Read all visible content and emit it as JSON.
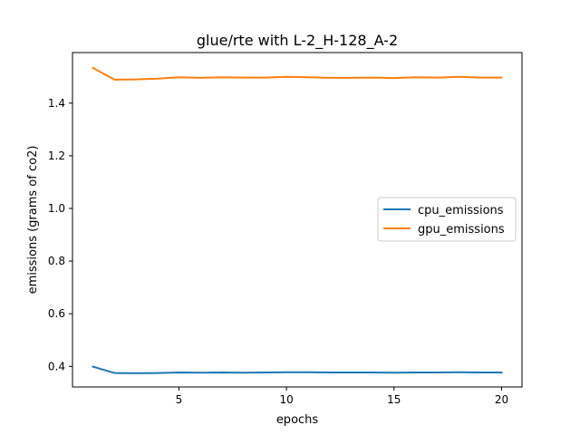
{
  "chart_data": {
    "type": "line",
    "title": "glue/rte with L-2_H-128_A-2",
    "xlabel": "epochs",
    "ylabel": "emissions (grams of co2)",
    "xlim": [
      0.05,
      20.95
    ],
    "ylim": [
      0.322,
      1.592
    ],
    "xticks": [
      5,
      10,
      15,
      20
    ],
    "yticks": [
      0.4,
      0.6,
      0.8,
      1.0,
      1.2,
      1.4
    ],
    "ytick_labels": [
      "0.4",
      "0.6",
      "0.8",
      "1.0",
      "1.2",
      "1.4"
    ],
    "grid": false,
    "legend_position": "center-right",
    "x": [
      1,
      2,
      3,
      4,
      5,
      6,
      7,
      8,
      9,
      10,
      11,
      12,
      13,
      14,
      15,
      16,
      17,
      18,
      19,
      20
    ],
    "series": [
      {
        "name": "cpu_emissions",
        "color": "#1f77b4",
        "values": [
          0.399,
          0.375,
          0.374,
          0.375,
          0.377,
          0.376,
          0.377,
          0.376,
          0.377,
          0.378,
          0.378,
          0.377,
          0.377,
          0.377,
          0.376,
          0.377,
          0.377,
          0.378,
          0.377,
          0.377
        ]
      },
      {
        "name": "gpu_emissions",
        "color": "#ff7f0e",
        "values": [
          1.534,
          1.489,
          1.49,
          1.493,
          1.498,
          1.496,
          1.498,
          1.497,
          1.497,
          1.5,
          1.498,
          1.496,
          1.496,
          1.497,
          1.495,
          1.498,
          1.497,
          1.5,
          1.497,
          1.497
        ]
      }
    ]
  }
}
